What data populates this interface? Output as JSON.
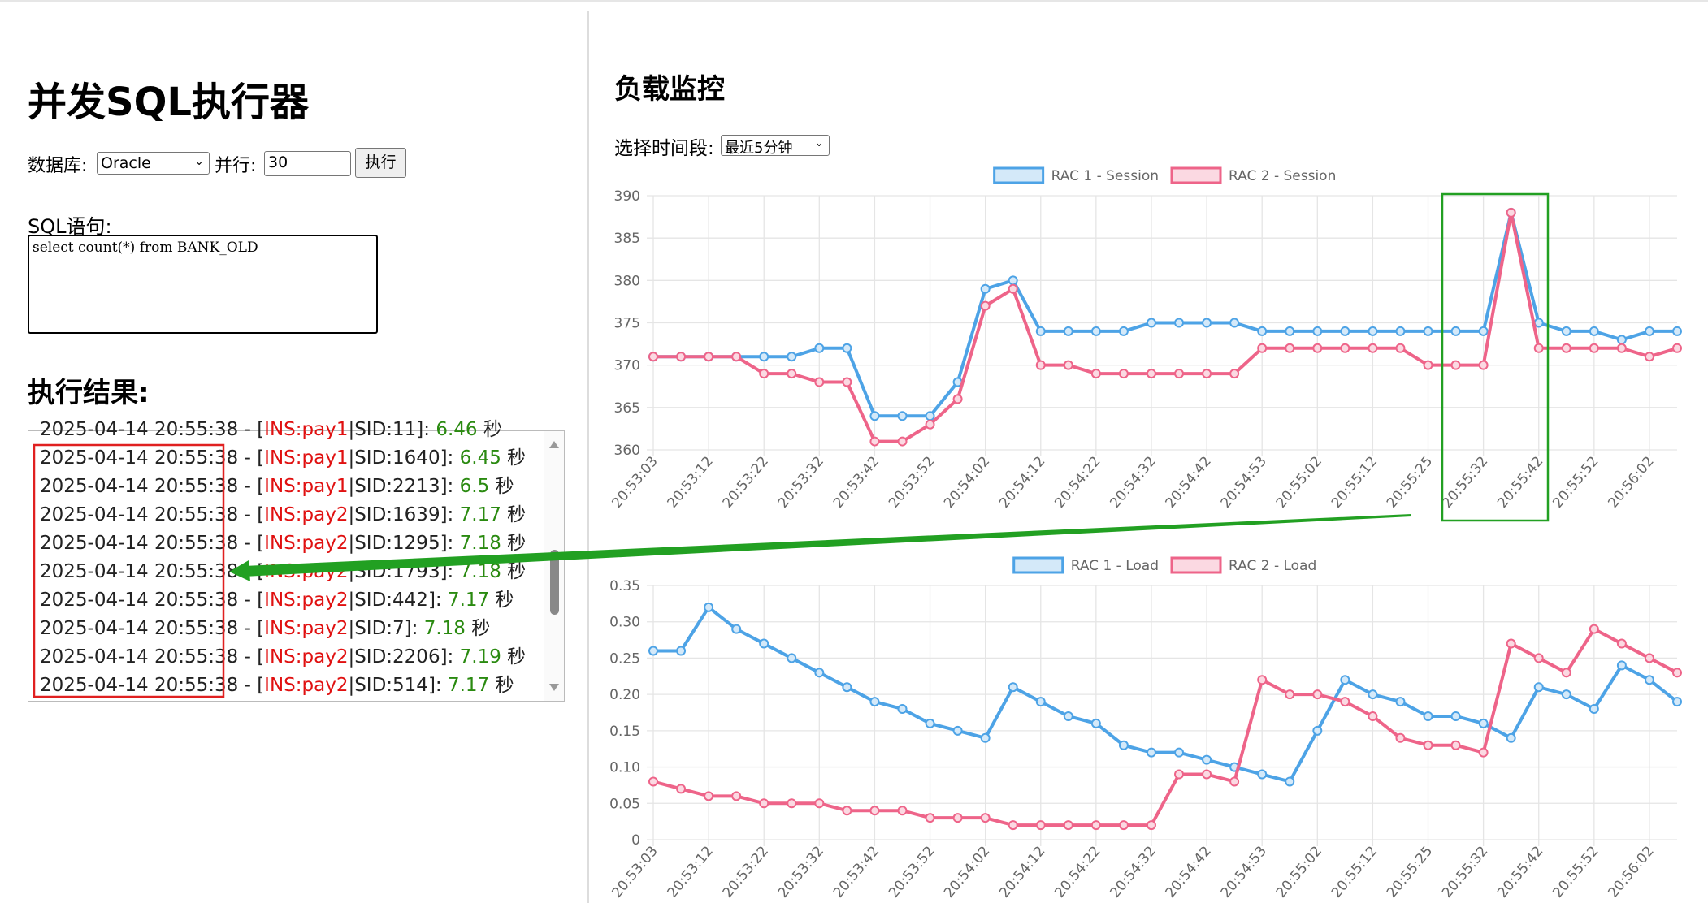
{
  "left": {
    "title": "并发SQL执行器",
    "db_label": "数据库:",
    "db_value": "Oracle",
    "parallel_label": "并行:",
    "parallel_value": "30",
    "run_button": "执行",
    "sql_label": "SQL语句:",
    "sql_text": "select count(*) from BANK_OLD",
    "results_title": "执行结果:",
    "results": [
      [
        "2025-04-14 20:55:38 - [",
        "INS:pay1",
        "|SID:11]: ",
        "6.46",
        " 秒"
      ],
      [
        "2025-04-14 20:55:38 - [",
        "INS:pay1",
        "|SID:1640]: ",
        "6.45",
        " 秒"
      ],
      [
        "2025-04-14 20:55:38 - [",
        "INS:pay1",
        "|SID:2213]: ",
        "6.5",
        " 秒"
      ],
      [
        "2025-04-14 20:55:38 - [",
        "INS:pay2",
        "|SID:1639]: ",
        "7.17",
        " 秒"
      ],
      [
        "2025-04-14 20:55:38 - [",
        "INS:pay2",
        "|SID:1295]: ",
        "7.18",
        " 秒"
      ],
      [
        "2025-04-14 20:55:38 - [",
        "INS:pay2",
        "|SID:1793]: ",
        "7.18",
        " 秒"
      ],
      [
        "2025-04-14 20:55:38 - [",
        "INS:pay2",
        "|SID:442]: ",
        "7.17",
        " 秒"
      ],
      [
        "2025-04-14 20:55:38 - [",
        "INS:pay2",
        "|SID:7]: ",
        "7.18",
        " 秒"
      ],
      [
        "2025-04-14 20:55:38 - [",
        "INS:pay2",
        "|SID:2206]: ",
        "7.19",
        " 秒"
      ],
      [
        "2025-04-14 20:55:38 - [",
        "INS:pay2",
        "|SID:514]: ",
        "7.17",
        " 秒"
      ]
    ]
  },
  "right": {
    "title": "负载监控",
    "period_label": "选择时间段:",
    "period_value": "最近5分钟"
  },
  "chart_data": [
    {
      "type": "line",
      "legend": "top",
      "grid": true,
      "categories": [
        "20:53:03",
        null,
        "20:53:12",
        null,
        "20:53:22",
        null,
        "20:53:32",
        null,
        "20:53:42",
        null,
        "20:53:52",
        null,
        "20:54:02",
        null,
        "20:54:12",
        null,
        "20:54:22",
        null,
        "20:54:32",
        null,
        "20:54:42",
        null,
        "20:54:53",
        null,
        "20:55:02",
        null,
        "20:55:12",
        null,
        "20:55:25",
        null,
        "20:55:32",
        null,
        "20:55:42",
        null,
        "20:55:52",
        null,
        "20:56:02",
        null
      ],
      "ylim": [
        360,
        390
      ],
      "yticks": [
        360,
        365,
        370,
        375,
        380,
        385,
        390
      ],
      "series": [
        {
          "name": "RAC 1 - Session",
          "color": "#4da3e6",
          "fill": "#d4e9f9",
          "values": [
            371,
            371,
            371,
            371,
            371,
            371,
            372,
            372,
            364,
            364,
            364,
            368,
            379,
            380,
            374,
            374,
            374,
            374,
            375,
            375,
            375,
            375,
            374,
            374,
            374,
            374,
            374,
            374,
            374,
            374,
            374,
            388,
            375,
            374,
            374,
            373,
            374,
            374
          ]
        },
        {
          "name": "RAC 2 - Session",
          "color": "#ee6489",
          "fill": "#fbd9e2",
          "values": [
            371,
            371,
            371,
            371,
            369,
            369,
            368,
            368,
            361,
            361,
            363,
            366,
            377,
            379,
            370,
            370,
            369,
            369,
            369,
            369,
            369,
            369,
            372,
            372,
            372,
            372,
            372,
            372,
            370,
            370,
            370,
            388,
            372,
            372,
            372,
            372,
            371,
            372
          ]
        }
      ]
    },
    {
      "type": "line",
      "legend": "top",
      "grid": true,
      "categories": [
        "20:53:03",
        null,
        "20:53:12",
        null,
        "20:53:22",
        null,
        "20:53:32",
        null,
        "20:53:42",
        null,
        "20:53:52",
        null,
        "20:54:02",
        null,
        "20:54:12",
        null,
        "20:54:22",
        null,
        "20:54:32",
        null,
        "20:54:42",
        null,
        "20:54:53",
        null,
        "20:55:02",
        null,
        "20:55:12",
        null,
        "20:55:25",
        null,
        "20:55:32",
        null,
        "20:55:42",
        null,
        "20:55:52",
        null,
        "20:56:02",
        null
      ],
      "ylim": [
        0,
        0.35
      ],
      "yticks": [
        0,
        0.05,
        {
          "value": 0.1,
          "label": "0.10"
        },
        0.15,
        {
          "value": 0.2,
          "label": "0.20"
        },
        0.25,
        {
          "value": 0.3,
          "label": "0.30"
        },
        0.35
      ],
      "series": [
        {
          "name": "RAC 1 - Load",
          "color": "#4da3e6",
          "fill": "#d4e9f9",
          "values": [
            0.26,
            0.26,
            0.32,
            0.29,
            0.27,
            0.25,
            0.23,
            0.21,
            0.19,
            0.18,
            0.16,
            0.15,
            0.14,
            0.21,
            0.19,
            0.17,
            0.16,
            0.13,
            0.12,
            0.12,
            0.11,
            0.1,
            0.09,
            0.08,
            0.15,
            0.22,
            0.2,
            0.19,
            0.17,
            0.17,
            0.16,
            0.14,
            0.21,
            0.2,
            0.18,
            0.24,
            0.22,
            0.19
          ]
        },
        {
          "name": "RAC 2 - Load",
          "color": "#ee6489",
          "fill": "#fbd9e2",
          "values": [
            0.08,
            0.07,
            0.06,
            0.06,
            0.05,
            0.05,
            0.05,
            0.04,
            0.04,
            0.04,
            0.03,
            0.03,
            0.03,
            0.02,
            0.02,
            0.02,
            0.02,
            0.02,
            0.02,
            0.09,
            0.09,
            0.08,
            0.22,
            0.2,
            0.2,
            0.19,
            0.17,
            0.14,
            0.13,
            0.13,
            0.12,
            0.27,
            0.25,
            0.23,
            0.29,
            0.27,
            0.25,
            0.23
          ]
        }
      ]
    }
  ]
}
